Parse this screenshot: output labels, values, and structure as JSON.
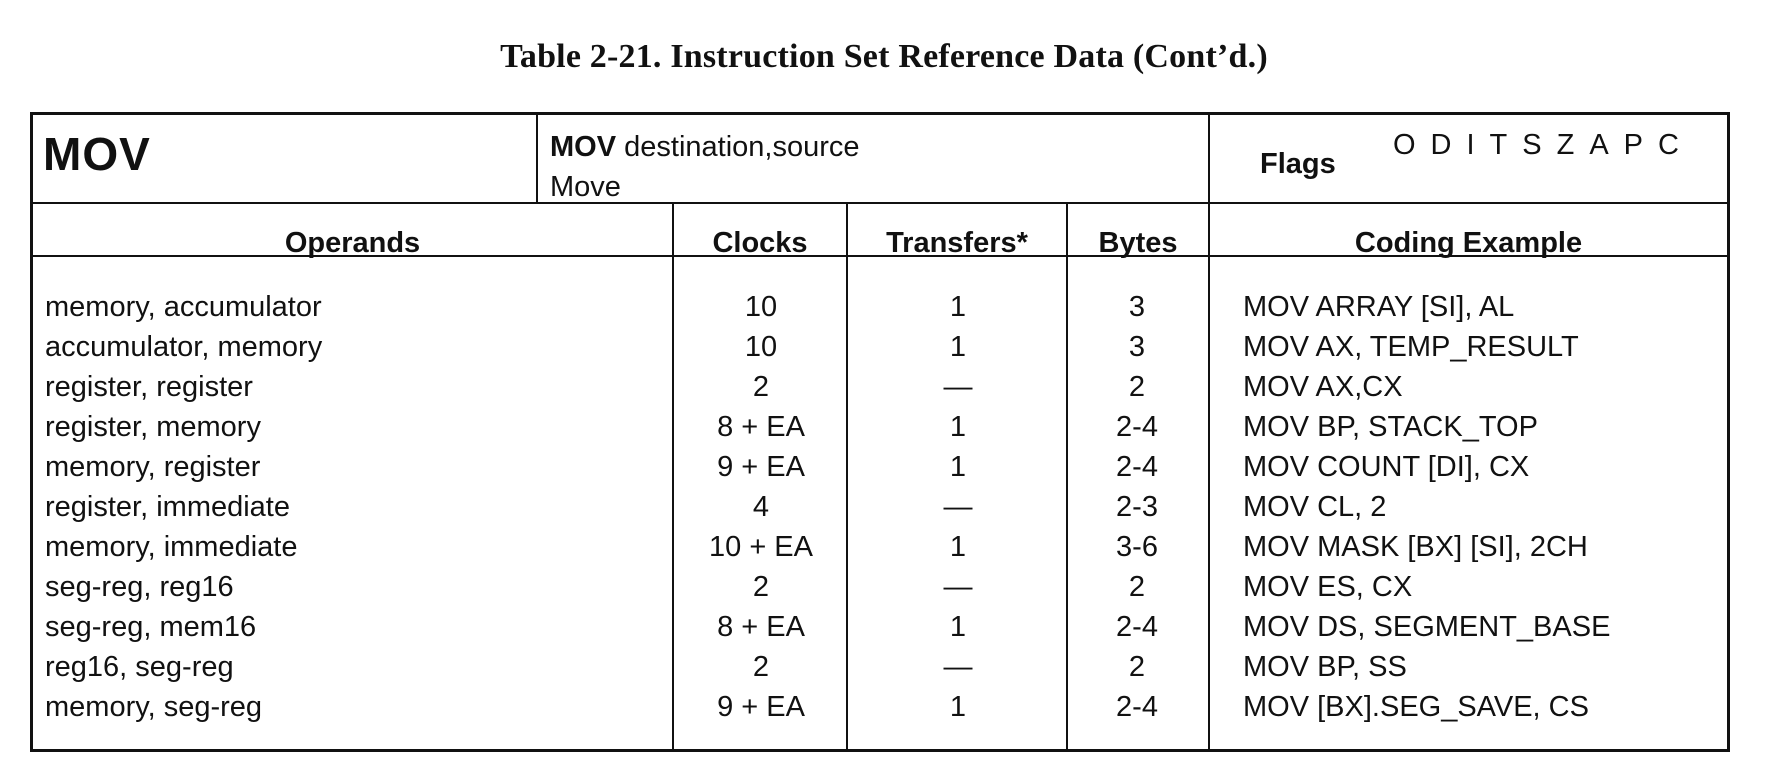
{
  "title": "Table 2-21. Instruction Set Reference Data (Cont’d.)",
  "instruction": {
    "mnemonic": "MOV",
    "syntax_mnemonic": "MOV",
    "syntax_operands": "destination,source",
    "description": "Move",
    "flags_label": "Flags",
    "flag_letters": "ODITSZAPC"
  },
  "columns": {
    "operands": "Operands",
    "clocks": "Clocks",
    "transfers": "Transfers*",
    "bytes": "Bytes",
    "coding_example": "Coding Example"
  },
  "rows": [
    {
      "operands": "memory, accumulator",
      "clocks": "10",
      "transfers": "1",
      "bytes": "3",
      "example": "MOV  ARRAY [SI], AL"
    },
    {
      "operands": "accumulator, memory",
      "clocks": "10",
      "transfers": "1",
      "bytes": "3",
      "example": "MOV  AX, TEMP_RESULT"
    },
    {
      "operands": "register, register",
      "clocks": "2",
      "transfers": "—",
      "bytes": "2",
      "example": "MOV  AX,CX"
    },
    {
      "operands": "register, memory",
      "clocks": "8 + EA",
      "transfers": "1",
      "bytes": "2-4",
      "example": "MOV  BP, STACK_TOP"
    },
    {
      "operands": "memory, register",
      "clocks": "9 + EA",
      "transfers": "1",
      "bytes": "2-4",
      "example": "MOV  COUNT [DI], CX"
    },
    {
      "operands": "register, immediate",
      "clocks": "4",
      "transfers": "—",
      "bytes": "2-3",
      "example": "MOV  CL, 2"
    },
    {
      "operands": "memory, immediate",
      "clocks": "10 + EA",
      "transfers": "1",
      "bytes": "3-6",
      "example": "MOV  MASK [BX] [SI], 2CH"
    },
    {
      "operands": "seg-reg, reg16",
      "clocks": "2",
      "transfers": "—",
      "bytes": "2",
      "example": "MOV  ES, CX"
    },
    {
      "operands": "seg-reg, mem16",
      "clocks": "8 + EA",
      "transfers": "1",
      "bytes": "2-4",
      "example": "MOV  DS, SEGMENT_BASE"
    },
    {
      "operands": "reg16, seg-reg",
      "clocks": "2",
      "transfers": "—",
      "bytes": "2",
      "example": "MOV  BP, SS"
    },
    {
      "operands": "memory, seg-reg",
      "clocks": "9 + EA",
      "transfers": "1",
      "bytes": "2-4",
      "example": "MOV  [BX].SEG_SAVE, CS"
    }
  ]
}
